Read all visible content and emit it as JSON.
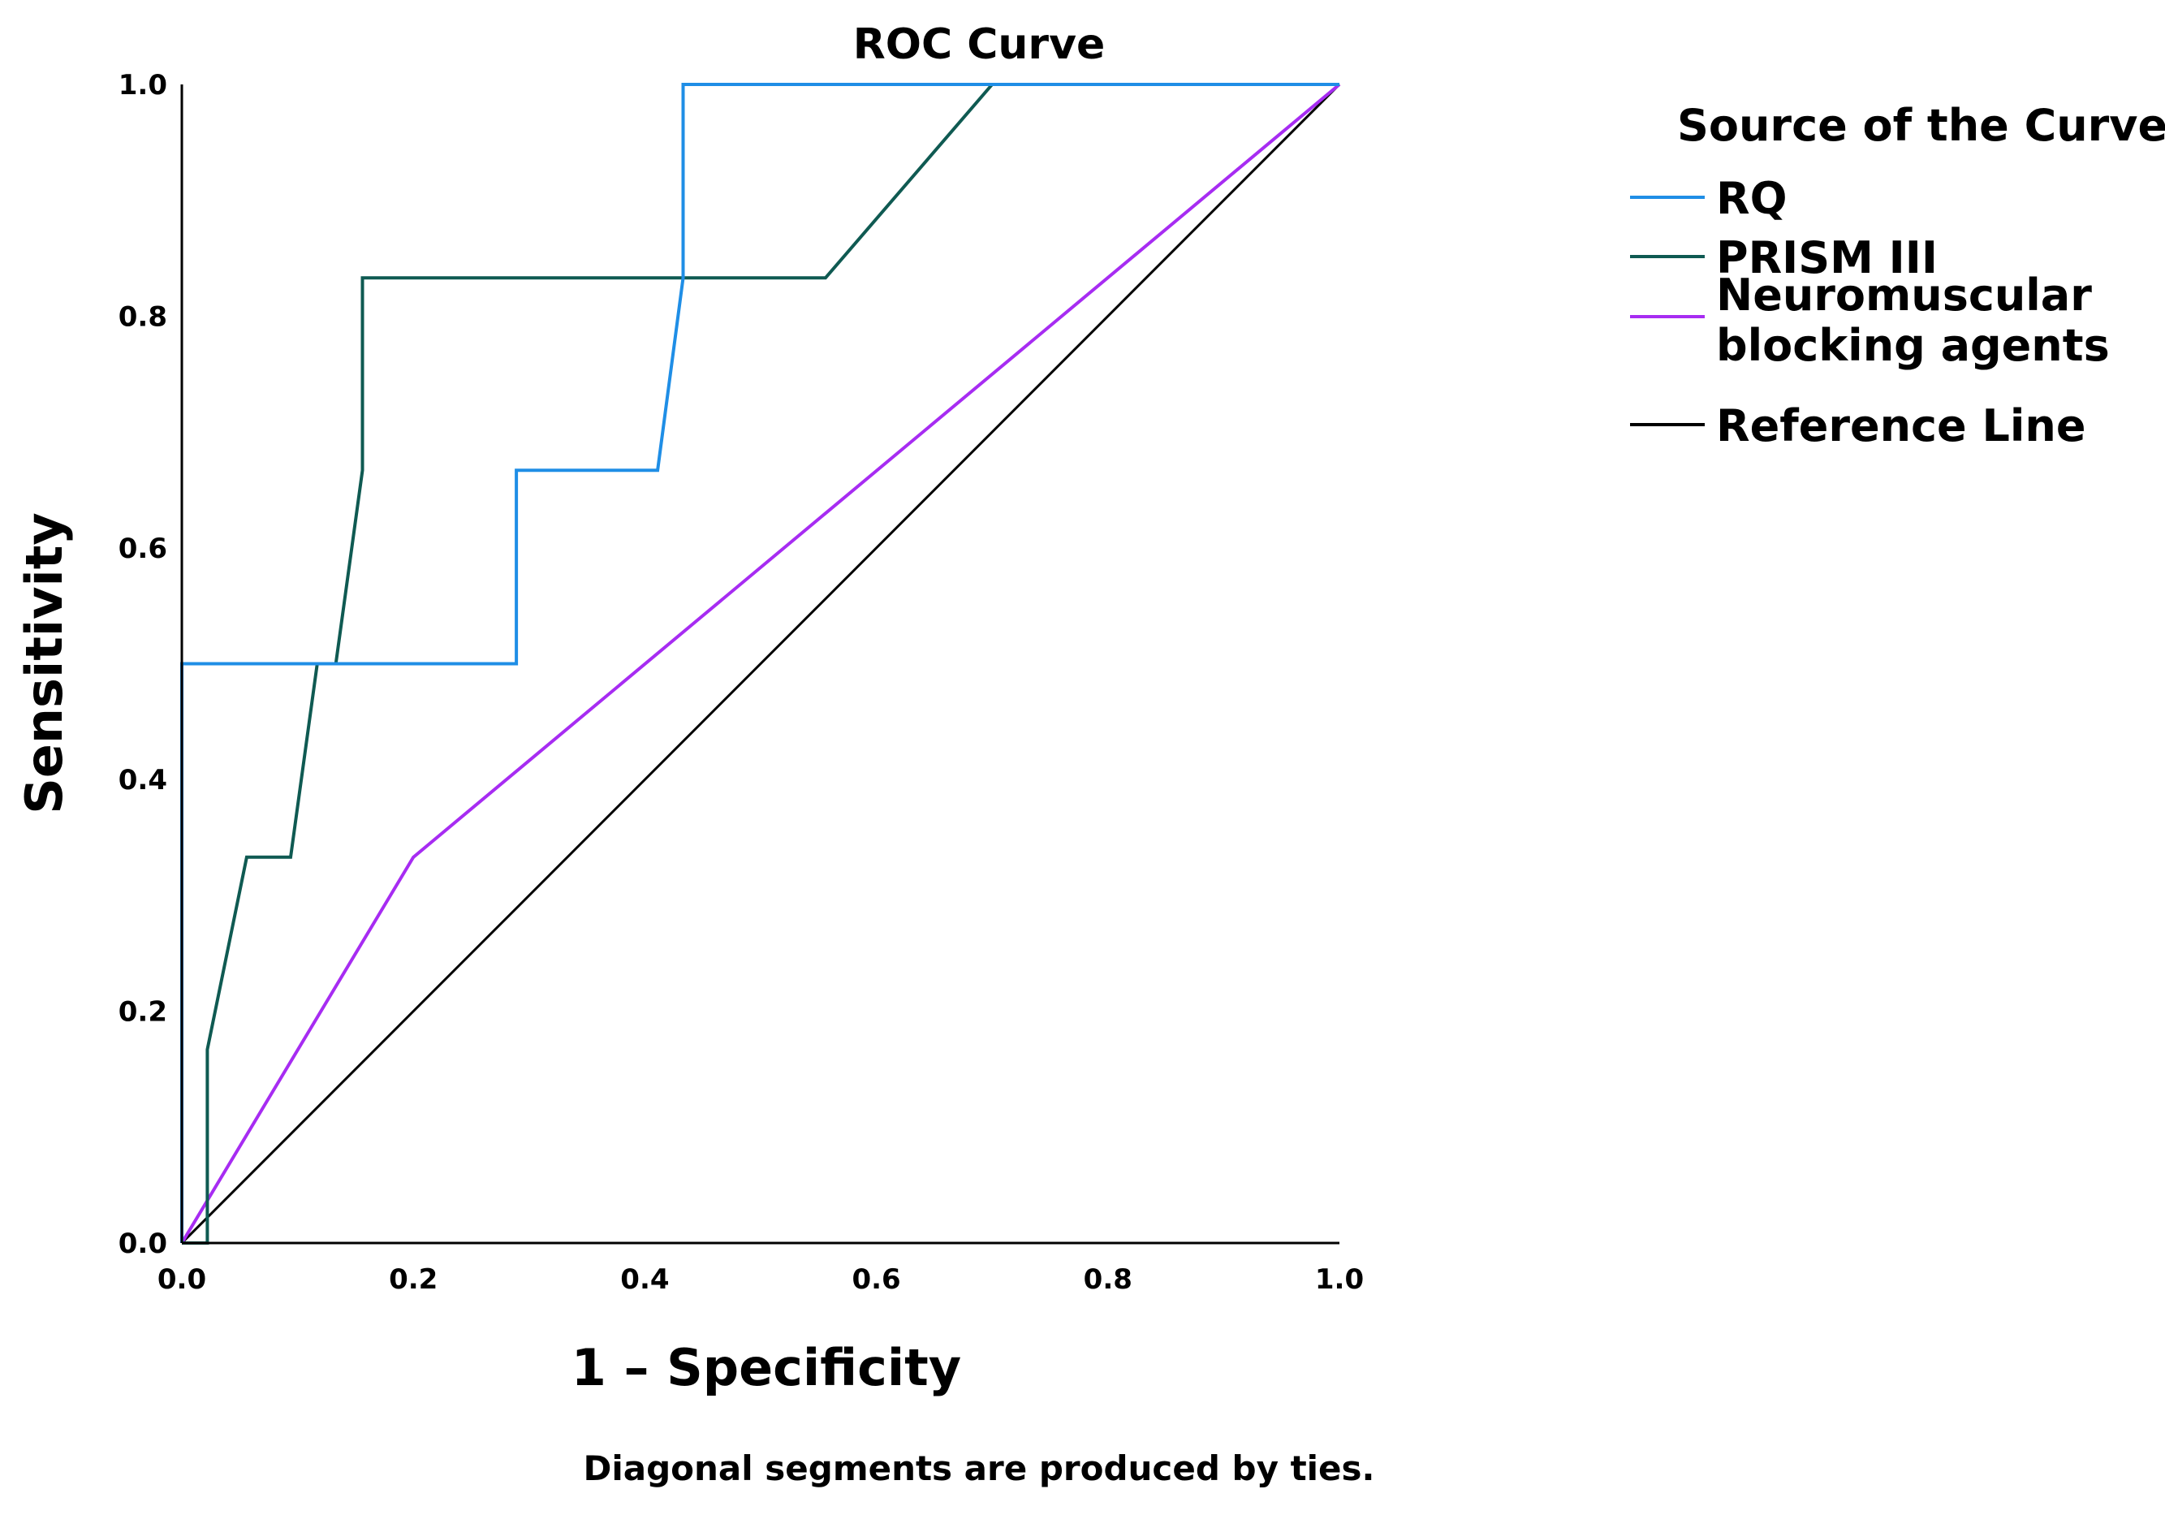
{
  "chart_data": {
    "type": "line",
    "title": "ROC Curve",
    "xlabel": "1 – Specificity",
    "ylabel": "Sensitivity",
    "xlim": [
      0,
      1
    ],
    "ylim": [
      0,
      1
    ],
    "x_ticks": [
      "0.0",
      "0.2",
      "0.4",
      "0.6",
      "0.8",
      "1.0"
    ],
    "y_ticks": [
      "0.0",
      "0.2",
      "0.4",
      "0.6",
      "0.8",
      "1.0"
    ],
    "grid": false,
    "legend_title": "Source of the Curve",
    "legend_position": "right",
    "footnote": "Diagonal segments are produced by ties.",
    "series": [
      {
        "name": "RQ",
        "color": "#1f8ee6",
        "x": [
          0.0,
          0.0,
          0.011,
          0.011,
          0.289,
          0.289,
          0.411,
          0.433,
          0.433,
          1.0
        ],
        "y": [
          0.0,
          0.5,
          0.5,
          0.5,
          0.5,
          0.667,
          0.667,
          0.833,
          1.0,
          1.0
        ]
      },
      {
        "name": "PRISM III",
        "color": "#0f5a52",
        "x": [
          0.0,
          0.022,
          0.022,
          0.056,
          0.094,
          0.117,
          0.133,
          0.156,
          0.156,
          0.556,
          0.7,
          1.0
        ],
        "y": [
          0.0,
          0.0,
          0.167,
          0.333,
          0.333,
          0.5,
          0.5,
          0.667,
          0.833,
          0.833,
          1.0,
          1.0
        ]
      },
      {
        "name": "Neuromuscular blocking agents",
        "legend_lines": [
          "Neuromuscular",
          "blocking agents"
        ],
        "color": "#a72cf2",
        "x": [
          0.0,
          0.2,
          1.0
        ],
        "y": [
          0.0,
          0.333,
          1.0
        ]
      },
      {
        "name": "Reference Line",
        "color": "#000000",
        "x": [
          0.0,
          1.0
        ],
        "y": [
          0.0,
          1.0
        ]
      }
    ]
  }
}
